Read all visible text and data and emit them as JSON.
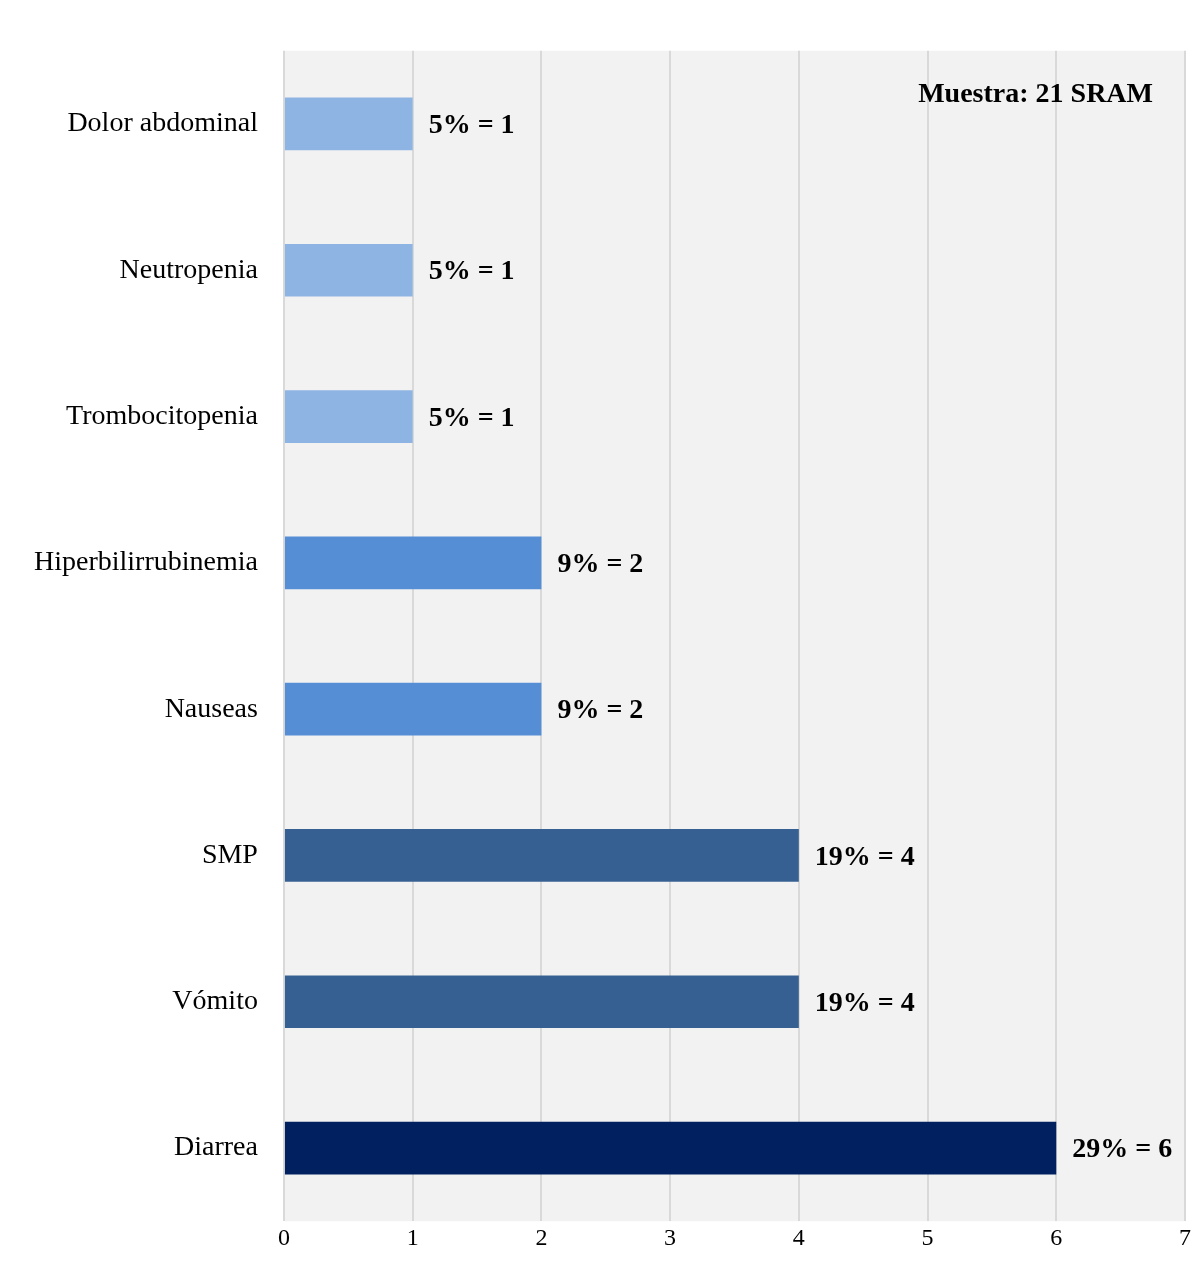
{
  "chart_data": {
    "type": "bar",
    "orientation": "horizontal",
    "categories": [
      "Dolor abdominal",
      "Neutropenia",
      "Trombocitopenia",
      "Hiperbilirrubinemia",
      "Nauseas",
      "SMP",
      "Vómito",
      "Diarrea"
    ],
    "values": [
      1,
      1,
      1,
      2,
      2,
      4,
      4,
      6
    ],
    "colors": [
      "#8eb4e3",
      "#8eb4e3",
      "#8eb4e3",
      "#558ed5",
      "#558ed5",
      "#376092",
      "#376092",
      "#002060"
    ],
    "value_labels": [
      "5% = 1",
      "5% = 1",
      "5% = 1",
      "9% = 2",
      "9% = 2",
      "19% = 4",
      "19% = 4",
      "29% = 6"
    ],
    "xlim": [
      0,
      7
    ],
    "xticks": [
      0,
      1,
      2,
      3,
      4,
      5,
      6,
      7
    ],
    "grid": "x",
    "legend": false,
    "annotations": [
      "Muestra: 21 SRAM"
    ]
  }
}
